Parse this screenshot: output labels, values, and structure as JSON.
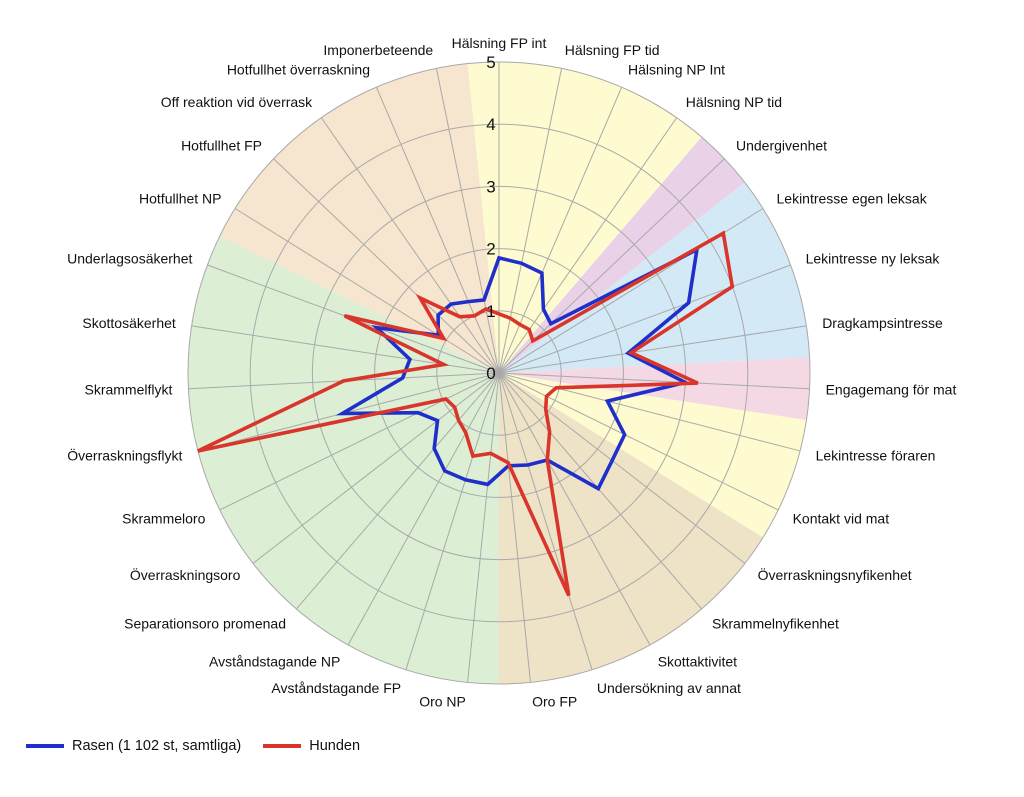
{
  "chart_data": {
    "type": "radar",
    "rlim": [
      0,
      5
    ],
    "ticks": [
      0,
      1,
      2,
      3,
      4,
      5
    ],
    "grid": true,
    "legend_position": "bottom-left",
    "categories": [
      "Hälsning FP int",
      "Hälsning FP tid",
      "Hälsning NP Int",
      "Hälsning NP tid",
      "Undergivenhet",
      "Lekintresse egen leksak",
      "Lekintresse ny leksak",
      "Dragkampsintresse",
      "Engagemang för mat",
      "Lekintresse föraren",
      "Kontakt vid mat",
      "Överraskningsnyfikenhet",
      "Skrammelnyfikenhet",
      "Skottaktivitet",
      "Undersökning av annat",
      "Oro FP",
      "Oro NP",
      "Avståndstagande FP",
      "Avståndstagande NP",
      "Separationsoro promenad",
      "Överraskningsoro",
      "Skrammeloro",
      "Överraskningsflykt",
      "Skrammelflykt",
      "Skottosäkerhet",
      "Underlagsosäkerhet",
      "Hotfullhet NP",
      "Hotfullhet FP",
      "Off reaktion vid överrask",
      "Hotfullhet överraskning",
      "Imponerbeteende"
    ],
    "sectors": [
      {
        "from": -0.5,
        "to": 3.5,
        "color": "#fdfbcf"
      },
      {
        "from": 3.5,
        "to": 4.5,
        "color": "#e9d2e8"
      },
      {
        "from": 4.5,
        "to": 7.5,
        "color": "#d3e9f6"
      },
      {
        "from": 7.5,
        "to": 8.5,
        "color": "#f4d9e4"
      },
      {
        "from": 8.5,
        "to": 10.5,
        "color": "#fdfbcf"
      },
      {
        "from": 10.5,
        "to": 15.5,
        "color": "#efe3c7"
      },
      {
        "from": 15.5,
        "to": 25.5,
        "color": "#dcefd5"
      },
      {
        "from": 25.5,
        "to": 30.5,
        "color": "#f6e5cf"
      }
    ],
    "series": [
      {
        "name": "Rasen (1 102 st, samtliga)",
        "color": "#1f2fc9",
        "values": [
          1.85,
          1.8,
          1.75,
          1.25,
          1.15,
          3.75,
          3.25,
          2.1,
          3.0,
          1.8,
          2.25,
          2.3,
          2.45,
          1.6,
          1.55,
          1.5,
          1.8,
          1.8,
          1.8,
          1.6,
          1.25,
          1.45,
          2.6,
          1.55,
          1.45,
          2.1,
          1.15,
          1.35,
          1.35,
          1.25,
          1.2
        ]
      },
      {
        "name": "Hunden",
        "color": "#d9352b",
        "values": [
          0.95,
          0.9,
          0.85,
          0.85,
          0.75,
          4.25,
          4.0,
          2.15,
          3.2,
          0.95,
          0.85,
          0.95,
          1.25,
          1.6,
          3.75,
          1.45,
          1.3,
          1.4,
          1.1,
          1.0,
          0.9,
          0.95,
          5.0,
          2.5,
          0.9,
          2.65,
          1.05,
          1.75,
          1.1,
          1.0,
          1.05
        ]
      }
    ]
  }
}
